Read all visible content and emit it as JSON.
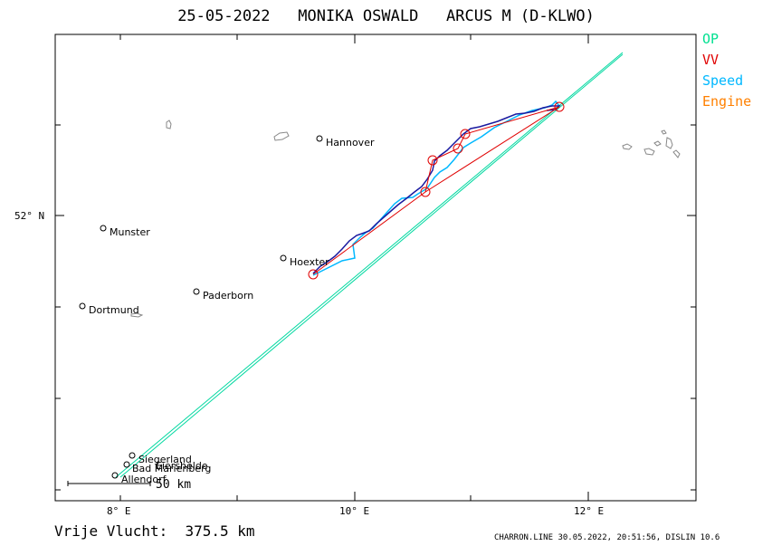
{
  "header": {
    "date": "25-05-2022",
    "pilot": "MONIKA OSWALD",
    "glider": "ARCUS M (D-KLWO)"
  },
  "legend": [
    {
      "label": "OP",
      "color": "#00e090"
    },
    {
      "label": "VV",
      "color": "#e00000"
    },
    {
      "label": "Speed",
      "color": "#00b8ff"
    },
    {
      "label": "Engine",
      "color": "#ff8000"
    }
  ],
  "axes": {
    "lat_label": "52° N",
    "lon_labels": [
      "8° E",
      "10° E",
      "12° E"
    ]
  },
  "scale_bar": {
    "label": "50 km"
  },
  "cities": [
    {
      "name": "Hannover"
    },
    {
      "name": "Munster"
    },
    {
      "name": "Hoexter"
    },
    {
      "name": "Paderborn"
    },
    {
      "name": "Dortmund"
    },
    {
      "name": "Siegerland"
    },
    {
      "name": "Eiershelde"
    },
    {
      "name": "Bad Marienberg"
    },
    {
      "name": "Allendorf"
    }
  ],
  "distance": {
    "label": "Vrije Vlucht:",
    "value": "375.5 km"
  },
  "footer": "CHARRON.LINE 30.05.2022, 20:51:56, DISLIN 10.6"
}
